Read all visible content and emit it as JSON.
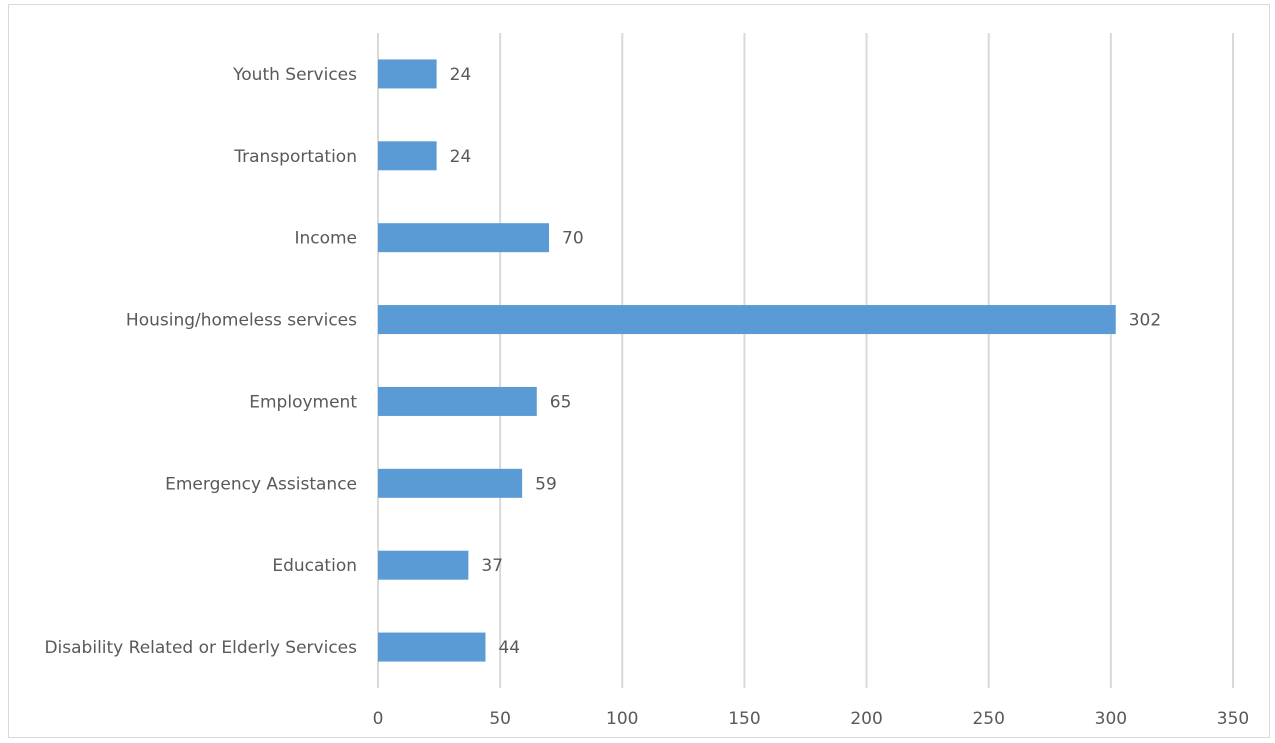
{
  "chart_data": {
    "type": "bar",
    "orientation": "horizontal",
    "categories": [
      "Disability Related or Elderly Services",
      "Education",
      "Emergency Assistance",
      "Employment",
      "Housing/homeless services",
      "Income",
      "Transportation",
      "Youth Services"
    ],
    "values": [
      44,
      37,
      59,
      65,
      302,
      70,
      24,
      24
    ],
    "data_labels": [
      "44",
      "37",
      "59",
      "65",
      "302",
      "70",
      "24",
      "24"
    ],
    "xlim": [
      0,
      350
    ],
    "x_ticks": [
      0,
      50,
      100,
      150,
      200,
      250,
      300,
      350
    ],
    "x_tick_labels": [
      "0",
      "50",
      "100",
      "150",
      "200",
      "250",
      "300",
      "350"
    ],
    "title": "",
    "xlabel": "",
    "ylabel": "",
    "grid": "vertical",
    "legend": "none",
    "bar_color": "#5b9bd5",
    "grid_color": "#d9d9d9",
    "text_color": "#595959"
  }
}
